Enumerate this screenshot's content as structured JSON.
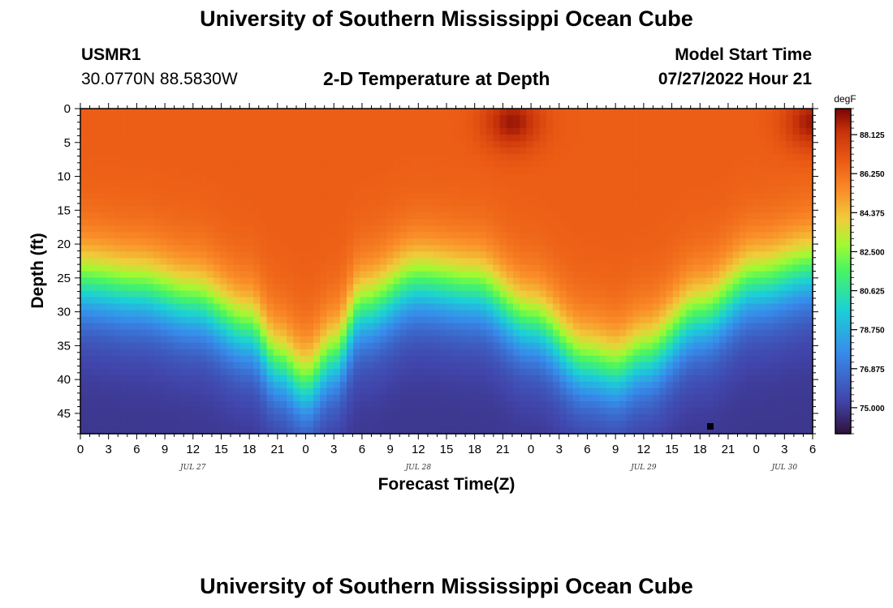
{
  "header": {
    "title": "University of Southern Mississippi Ocean Cube",
    "station_id": "USMR1",
    "station_coords": "30.0770N  88.5830W",
    "subtitle": "2-D Temperature at Depth",
    "model_label": "Model Start Time",
    "model_time": "07/27/2022 Hour 21"
  },
  "footer": {
    "title": "University of Southern Mississippi Ocean Cube"
  },
  "chart_data": {
    "type": "heatmap",
    "title": "2-D Temperature at Depth",
    "xlabel": "Forecast Time(Z)",
    "ylabel": "Depth (ft)",
    "x_tick_labels": [
      "0",
      "3",
      "6",
      "9",
      "12",
      "15",
      "18",
      "21",
      "0",
      "3",
      "6",
      "9",
      "12",
      "15",
      "18",
      "21",
      "0",
      "3",
      "6",
      "9",
      "12",
      "15",
      "18",
      "21",
      "0",
      "3",
      "6"
    ],
    "x_range_hours": [
      0,
      78
    ],
    "date_labels": [
      {
        "label": "JUL 27",
        "hour": 12
      },
      {
        "label": "JUL 28",
        "hour": 36
      },
      {
        "label": "JUL 29",
        "hour": 60
      },
      {
        "label": "JUL 30",
        "hour": 75
      }
    ],
    "y_ticks": [
      0,
      5,
      10,
      15,
      20,
      25,
      30,
      35,
      40,
      45
    ],
    "y_range_ft": [
      0,
      48
    ],
    "colorbar": {
      "unit": "degF",
      "range": [
        73.75,
        89.375
      ],
      "tick_values": [
        75.0,
        76.875,
        78.75,
        80.625,
        82.5,
        84.375,
        86.25,
        88.125
      ],
      "tick_labels": [
        "75.000",
        "76.875",
        "78.750",
        "80.625",
        "82.500",
        "84.375",
        "86.250",
        "88.125"
      ]
    },
    "field": {
      "surface_temp_degF": 86.8,
      "bottom_temp_degF": 74.9,
      "thermocline_depth_ft": [
        {
          "hour": 0,
          "depth": 26
        },
        {
          "hour": 6,
          "depth": 27
        },
        {
          "hour": 12,
          "depth": 29
        },
        {
          "hour": 18,
          "depth": 33
        },
        {
          "hour": 21,
          "depth": 38
        },
        {
          "hour": 24,
          "depth": 41
        },
        {
          "hour": 27,
          "depth": 37
        },
        {
          "hour": 30,
          "depth": 30
        },
        {
          "hour": 36,
          "depth": 26
        },
        {
          "hour": 42,
          "depth": 27
        },
        {
          "hour": 48,
          "depth": 32
        },
        {
          "hour": 54,
          "depth": 38
        },
        {
          "hour": 57,
          "depth": 39
        },
        {
          "hour": 60,
          "depth": 37
        },
        {
          "hour": 66,
          "depth": 31
        },
        {
          "hour": 72,
          "depth": 26
        },
        {
          "hour": 78,
          "depth": 24
        }
      ],
      "warm_spots": [
        {
          "hour": 46,
          "depth": 2,
          "temp_degF": 88.9
        },
        {
          "hour": 78,
          "depth": 2,
          "temp_degF": 88.9
        }
      ]
    }
  }
}
